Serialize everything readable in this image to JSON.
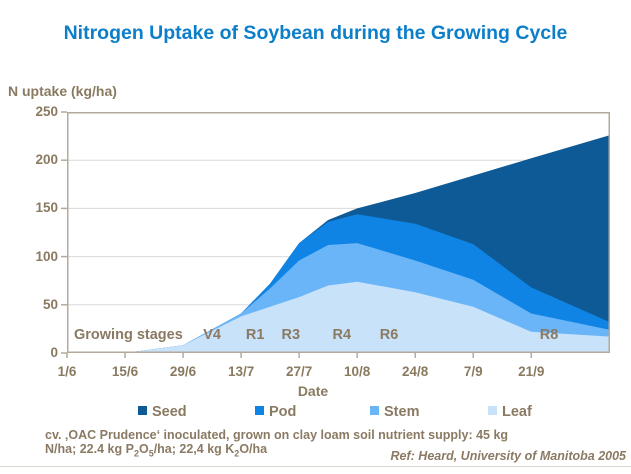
{
  "slide": {
    "title": "Nitrogen Uptake of Soybean during the Growing Cycle",
    "footer": {
      "line1": "cv. ‚OAC Prudence‘ inoculated, grown on clay loam soil nutrient supply: 45 kg",
      "line2_seg1": "N/ha; 22.4 kg P",
      "line2_sub1": "2",
      "line2_seg2": "O",
      "line2_sub2": "5",
      "line2_seg3": "/ha; 22,4 kg K",
      "line2_sub3": "2",
      "line2_seg4": "O/ha",
      "reference": "Ref: Heard, University of Manitoba 2005"
    }
  },
  "chart_data": {
    "type": "area",
    "stacked": true,
    "title": "Nitrogen Uptake of Soybean during the Growing Cycle",
    "ylabel": "N uptake (kg/ha)",
    "xlabel": "Date",
    "ylim": [
      0,
      250
    ],
    "y_ticks": [
      0,
      50,
      100,
      150,
      200,
      250
    ],
    "y_tick_labels": [
      "0",
      "50",
      "100",
      "150",
      "200",
      "250"
    ],
    "x_range_days": [
      0,
      131
    ],
    "x_ticks": [
      {
        "day": 0,
        "label": "1/6"
      },
      {
        "day": 14,
        "label": "15/6"
      },
      {
        "day": 28,
        "label": "29/6"
      },
      {
        "day": 42,
        "label": "13/7"
      },
      {
        "day": 56,
        "label": "27/7"
      },
      {
        "day": 70,
        "label": "10/8"
      },
      {
        "day": 84,
        "label": "24/8"
      },
      {
        "day": 98,
        "label": "7/9"
      },
      {
        "day": 112,
        "label": "21/9"
      }
    ],
    "days": [
      0,
      14,
      28,
      42,
      49,
      56,
      63,
      70,
      84,
      98,
      112,
      131
    ],
    "series": [
      {
        "name": "Leaf",
        "color": "#c8e2fa",
        "values": [
          0,
          0,
          8,
          38,
          48,
          58,
          70,
          74,
          63,
          48,
          22,
          17
        ]
      },
      {
        "name": "Stem",
        "color": "#6ab5f8",
        "values": [
          0,
          0,
          0,
          3,
          19,
          38,
          42,
          40,
          33,
          28,
          19,
          7
        ]
      },
      {
        "name": "Pod",
        "color": "#0f84e4",
        "values": [
          0,
          0,
          0,
          0,
          5,
          18,
          24,
          30,
          38,
          37,
          27,
          8
        ]
      },
      {
        "name": "Seed",
        "color": "#0e5a96",
        "values": [
          0,
          0,
          0,
          0,
          0,
          0,
          2,
          6,
          32,
          71,
          134,
          194
        ]
      }
    ],
    "legend": {
      "position": "bottom",
      "items": [
        {
          "label": "Seed",
          "color": "#0e5a96"
        },
        {
          "label": "Pod",
          "color": "#0f84e4"
        },
        {
          "label": "Stem",
          "color": "#6ab5f8"
        },
        {
          "label": "Leaf",
          "color": "#c8e2fa"
        }
      ]
    },
    "growing_stages": {
      "caption": "Growing stages",
      "stages": [
        {
          "label": "V4",
          "day": 35
        },
        {
          "label": "R1",
          "day": 45.4
        },
        {
          "label": "R3",
          "day": 54
        },
        {
          "label": "R4",
          "day": 66.3
        },
        {
          "label": "R6",
          "day": 77.7
        },
        {
          "label": "R8",
          "day": 116.3
        }
      ]
    },
    "grid": "horizontal",
    "colors": {
      "title_text": "#0d7ec9",
      "axis_text": "#897a60",
      "frame": "#b3aa9b",
      "gridline": "#dadada"
    }
  }
}
